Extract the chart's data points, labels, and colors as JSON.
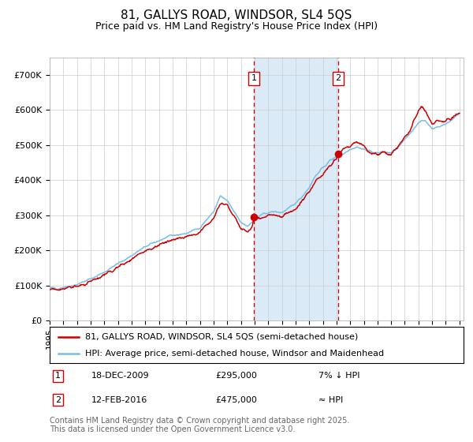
{
  "title": "81, GALLYS ROAD, WINDSOR, SL4 5QS",
  "subtitle": "Price paid vs. HM Land Registry's House Price Index (HPI)",
  "ylim": [
    0,
    750000
  ],
  "yticks": [
    0,
    100000,
    200000,
    300000,
    400000,
    500000,
    600000,
    700000
  ],
  "ytick_labels": [
    "£0",
    "£100K",
    "£200K",
    "£300K",
    "£400K",
    "£500K",
    "£600K",
    "£700K"
  ],
  "hpi_color": "#7abce8",
  "price_color": "#cc0000",
  "dot_color": "#cc0000",
  "vline_color": "#cc0000",
  "shade_color": "#daeaf7",
  "grid_color": "#cccccc",
  "background_color": "#ffffff",
  "t1_year": 2009,
  "t1_month": 12,
  "t1_day": 18,
  "t2_year": 2016,
  "t2_month": 2,
  "t2_day": 12,
  "transaction1_price": 295000,
  "transaction2_price": 475000,
  "legend_line1": "81, GALLYS ROAD, WINDSOR, SL4 5QS (semi-detached house)",
  "legend_line2": "HPI: Average price, semi-detached house, Windsor and Maidenhead",
  "annotation1_date": "18-DEC-2009",
  "annotation1_price": "£295,000",
  "annotation1_note": "7% ↓ HPI",
  "annotation2_date": "12-FEB-2016",
  "annotation2_price": "£475,000",
  "annotation2_note": "≈ HPI",
  "footer": "Contains HM Land Registry data © Crown copyright and database right 2025.\nThis data is licensed under the Open Government Licence v3.0.",
  "title_fontsize": 11,
  "subtitle_fontsize": 9,
  "tick_fontsize": 8,
  "legend_fontsize": 8,
  "annotation_fontsize": 8,
  "footer_fontsize": 7
}
